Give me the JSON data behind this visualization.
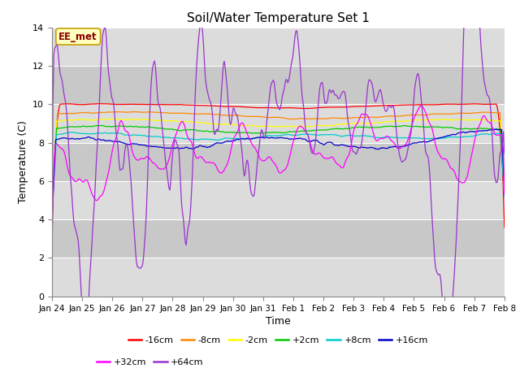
{
  "title": "Soil/Water Temperature Set 1",
  "xlabel": "Time",
  "ylabel": "Temperature (C)",
  "ylim": [
    0,
    14
  ],
  "annotation": "EE_met",
  "annotation_color": "#8B0000",
  "annotation_bg": "#FFFFC0",
  "annotation_edge": "#C8A000",
  "series_colors": {
    "-16cm": "#FF0000",
    "-8cm": "#FF8800",
    "-2cm": "#FFFF00",
    "+2cm": "#00CC00",
    "+8cm": "#00CCCC",
    "+16cm": "#0000CC",
    "+32cm": "#FF00FF",
    "+64cm": "#9933CC"
  },
  "tick_labels": [
    "Jan 24",
    "Jan 25",
    "Jan 26",
    "Jan 27",
    "Jan 28",
    "Jan 29",
    "Jan 30",
    "Jan 31",
    "Feb 1",
    "Feb 2",
    "Feb 3",
    "Feb 4",
    "Feb 5",
    "Feb 6",
    "Feb 7",
    "Feb 8"
  ],
  "yticks": [
    0,
    2,
    4,
    6,
    8,
    10,
    12,
    14
  ],
  "bg_light": "#DCDCDC",
  "bg_dark": "#C8C8C8",
  "n_points": 500,
  "figsize": [
    6.4,
    4.8
  ],
  "dpi": 100
}
